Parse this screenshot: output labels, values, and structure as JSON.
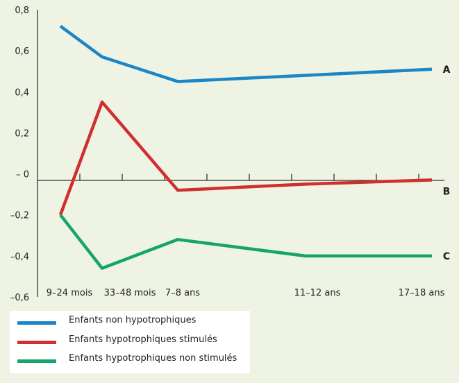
{
  "chart_data": {
    "type": "line",
    "title": "",
    "xlabel": "",
    "ylabel": "",
    "x": [
      "9-24 mois",
      "33-48 mois",
      "7-8 ans",
      "11-12 ans",
      "17-18 ans"
    ],
    "x_tick_labels": [
      "9–24 mois",
      "33–48 mois",
      "7–8 ans",
      "11–12 ans",
      "17–18 ans"
    ],
    "y_tick_labels": [
      "0,8",
      "0,6",
      "0,4",
      "0,2",
      "– 0",
      "–0,2",
      "–0,4",
      "–0,6"
    ],
    "ylim": [
      -0.6,
      0.8
    ],
    "grid": false,
    "legend_position": "bottom-left",
    "series": [
      {
        "name": "Enfants non hypotrophiques",
        "tag": "A",
        "color": "#1a86c8",
        "points": [
          [
            "9-24 mois",
            0.72
          ],
          [
            "33-48 mois",
            0.57
          ],
          [
            "7-8 ans",
            0.45
          ],
          [
            "11-12 ans",
            0.48
          ],
          [
            "17-18 ans",
            0.51
          ]
        ]
      },
      {
        "name": "Enfants hypotrophiques stimulés",
        "tag": "B",
        "color": "#d02f30",
        "points": [
          [
            "9-24 mois",
            -0.2
          ],
          [
            "33-48 mois",
            0.35
          ],
          [
            "7-8 ans",
            -0.08
          ],
          [
            "11-12 ans",
            -0.05
          ],
          [
            "17-18 ans",
            -0.03
          ]
        ]
      },
      {
        "name": "Enfants hypotrophiques non stimulés",
        "tag": "C",
        "color": "#16a46a",
        "points": [
          [
            "9-24 mois",
            -0.2
          ],
          [
            "33-48 mois",
            -0.46
          ],
          [
            "7-8 ans",
            -0.32
          ],
          [
            "11-12 ans",
            -0.4
          ],
          [
            "17-18 ans",
            -0.4
          ]
        ]
      }
    ]
  }
}
